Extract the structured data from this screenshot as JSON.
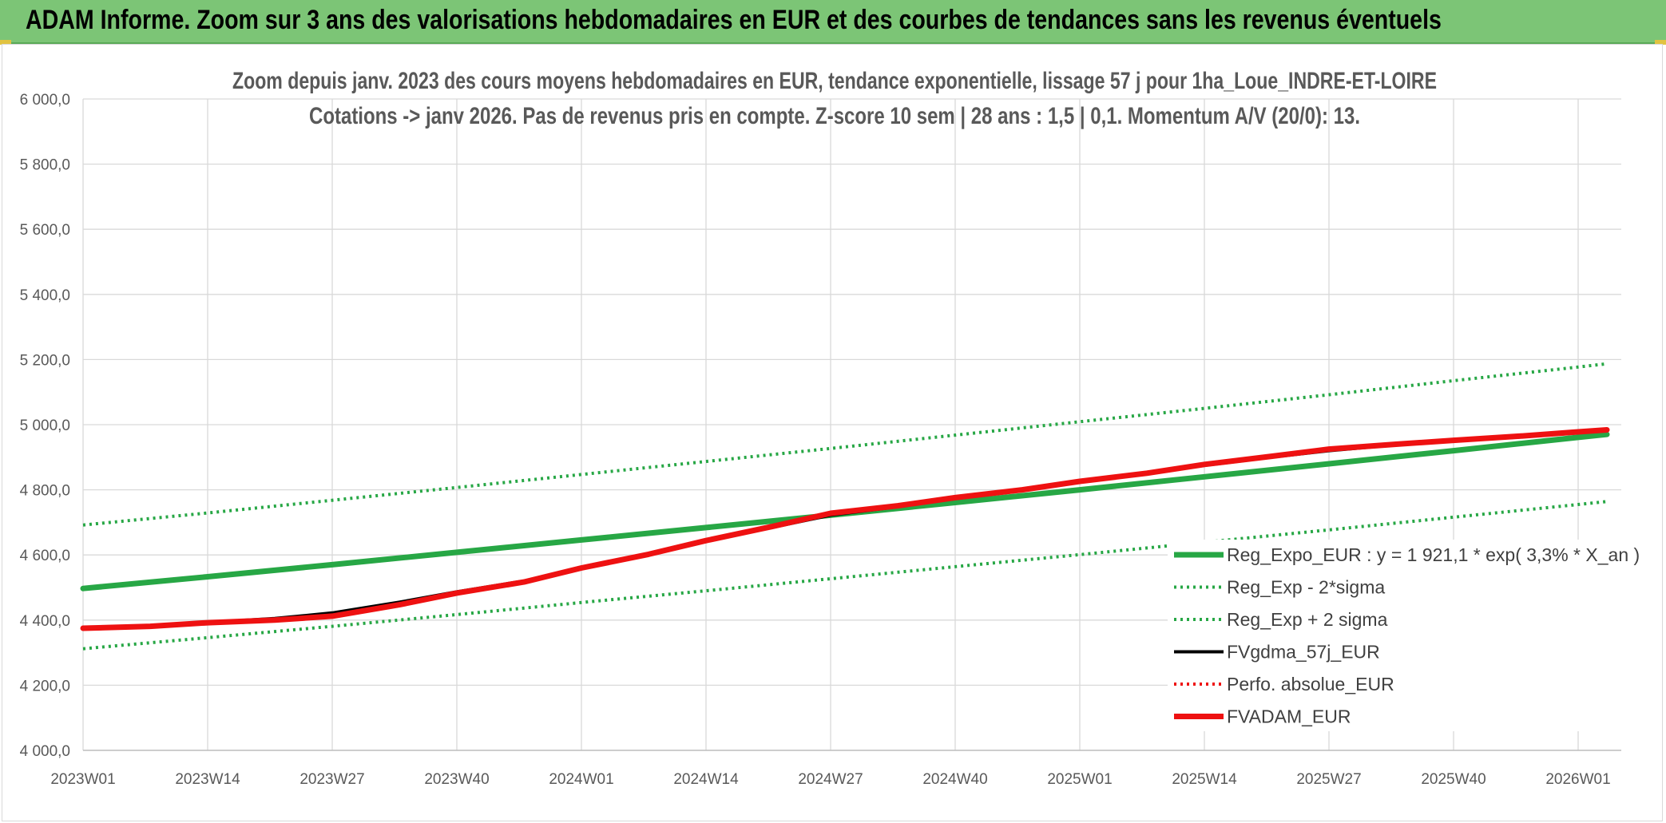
{
  "header": {
    "title": "ADAM Informe. Zoom sur 3 ans des valorisations hebdomadaires en EUR et des courbes de tendances sans les revenus éventuels"
  },
  "colors": {
    "banner": "#7cc576",
    "trend": "#27a745",
    "fvgdma": "#000000",
    "fvadam": "#ee1111",
    "perfo": "#ee1111",
    "grid": "#d9d9d9"
  },
  "chart_data": {
    "type": "line",
    "title_line1": "Zoom depuis janv. 2023 des cours moyens hebdomadaires en EUR, tendance exponentielle, lissage 57 j pour 1ha_Loue_INDRE-ET-LOIRE",
    "title_line2": "Cotations -> janv 2026. Pas de revenus pris en compte. Z-score 10 sem | 28 ans : 1,5 | 0,1. Momentum A/V (20/0): 13.",
    "ylim": [
      4000,
      6000
    ],
    "yticks": [
      {
        "v": 4000,
        "label": "4 000,0"
      },
      {
        "v": 4200,
        "label": "4 200,0"
      },
      {
        "v": 4400,
        "label": "4 400,0"
      },
      {
        "v": 4600,
        "label": "4 600,0"
      },
      {
        "v": 4800,
        "label": "4 800,0"
      },
      {
        "v": 5000,
        "label": "5 000,0"
      },
      {
        "v": 5200,
        "label": "5 200,0"
      },
      {
        "v": 5400,
        "label": "5 400,0"
      },
      {
        "v": 5600,
        "label": "5 600,0"
      },
      {
        "v": 5800,
        "label": "5 800,0"
      },
      {
        "v": 6000,
        "label": "6 000,0"
      }
    ],
    "x_categories": [
      "2023W01",
      "2023W14",
      "2023W27",
      "2023W40",
      "2024W01",
      "2024W14",
      "2024W27",
      "2024W40",
      "2025W01",
      "2025W14",
      "2025W27",
      "2025W40",
      "2026W01"
    ],
    "x_end": "2026W04",
    "grid": true,
    "legend_position": "right",
    "series": [
      {
        "name": "Reg_Expo_EUR : y = 1 921,1 * exp( 3,3% *  X_an )",
        "style": "solid-thick",
        "color": "#27a745",
        "x": [
          "2023W01",
          "2023W14",
          "2023W27",
          "2023W40",
          "2024W01",
          "2024W14",
          "2024W27",
          "2024W40",
          "2025W01",
          "2025W14",
          "2025W27",
          "2025W40",
          "2026W01",
          "2026W04"
        ],
        "values": [
          4497,
          4533,
          4570,
          4608,
          4646,
          4684,
          4722,
          4761,
          4800,
          4840,
          4880,
          4920,
          4961,
          4970
        ]
      },
      {
        "name": "Reg_Exp - 2*sigma",
        "style": "dotted",
        "color": "#27a745",
        "x": [
          "2023W01",
          "2023W14",
          "2023W27",
          "2023W40",
          "2024W01",
          "2024W14",
          "2024W27",
          "2024W40",
          "2025W01",
          "2025W14",
          "2025W27",
          "2025W40",
          "2026W01",
          "2026W04"
        ],
        "values": [
          4312,
          4346,
          4381,
          4417,
          4454,
          4490,
          4527,
          4564,
          4601,
          4639,
          4677,
          4716,
          4755,
          4764
        ]
      },
      {
        "name": "Reg_Exp + 2 sigma",
        "style": "dotted",
        "color": "#27a745",
        "x": [
          "2023W01",
          "2023W14",
          "2023W27",
          "2023W40",
          "2024W01",
          "2024W14",
          "2024W27",
          "2024W40",
          "2025W01",
          "2025W14",
          "2025W27",
          "2025W40",
          "2026W01",
          "2026W04"
        ],
        "values": [
          4692,
          4729,
          4768,
          4807,
          4847,
          4887,
          4927,
          4968,
          5009,
          5050,
          5092,
          5135,
          5177,
          5187
        ]
      },
      {
        "name": "FVgdma_57j_EUR",
        "style": "solid",
        "color": "#000000",
        "x": [
          "2023W01",
          "2023W08",
          "2023W14",
          "2023W21",
          "2023W27",
          "2023W34",
          "2023W40",
          "2023W47",
          "2024W01",
          "2024W08",
          "2024W14",
          "2024W21",
          "2024W27",
          "2024W34",
          "2024W40",
          "2024W47",
          "2025W01",
          "2025W08",
          "2025W14",
          "2025W21",
          "2025W27",
          "2025W34",
          "2025W40",
          "2025W47",
          "2026W01",
          "2026W04"
        ],
        "values": [
          4376,
          4383,
          4393,
          4405,
          4422,
          4455,
          4487,
          4520,
          4560,
          4600,
          4645,
          4685,
          4722,
          4748,
          4773,
          4798,
          4825,
          4850,
          4875,
          4900,
          4920,
          4938,
          4950,
          4962,
          4975,
          4982
        ]
      },
      {
        "name": "Perfo. absolue_EUR",
        "style": "dotted",
        "color": "#ee1111",
        "x": [],
        "values": []
      },
      {
        "name": "FVADAM_EUR",
        "style": "solid-thick",
        "color": "#ee1111",
        "x": [
          "2023W01",
          "2023W08",
          "2023W14",
          "2023W21",
          "2023W27",
          "2023W34",
          "2023W40",
          "2023W47",
          "2024W01",
          "2024W08",
          "2024W14",
          "2024W21",
          "2024W27",
          "2024W34",
          "2024W40",
          "2024W47",
          "2025W01",
          "2025W08",
          "2025W14",
          "2025W21",
          "2025W27",
          "2025W34",
          "2025W40",
          "2025W47",
          "2026W01",
          "2026W04"
        ],
        "values": [
          4375,
          4381,
          4392,
          4400,
          4412,
          4447,
          4483,
          4517,
          4560,
          4602,
          4644,
          4688,
          4728,
          4751,
          4776,
          4800,
          4826,
          4851,
          4878,
          4903,
          4925,
          4940,
          4952,
          4965,
          4978,
          4984
        ]
      }
    ]
  }
}
